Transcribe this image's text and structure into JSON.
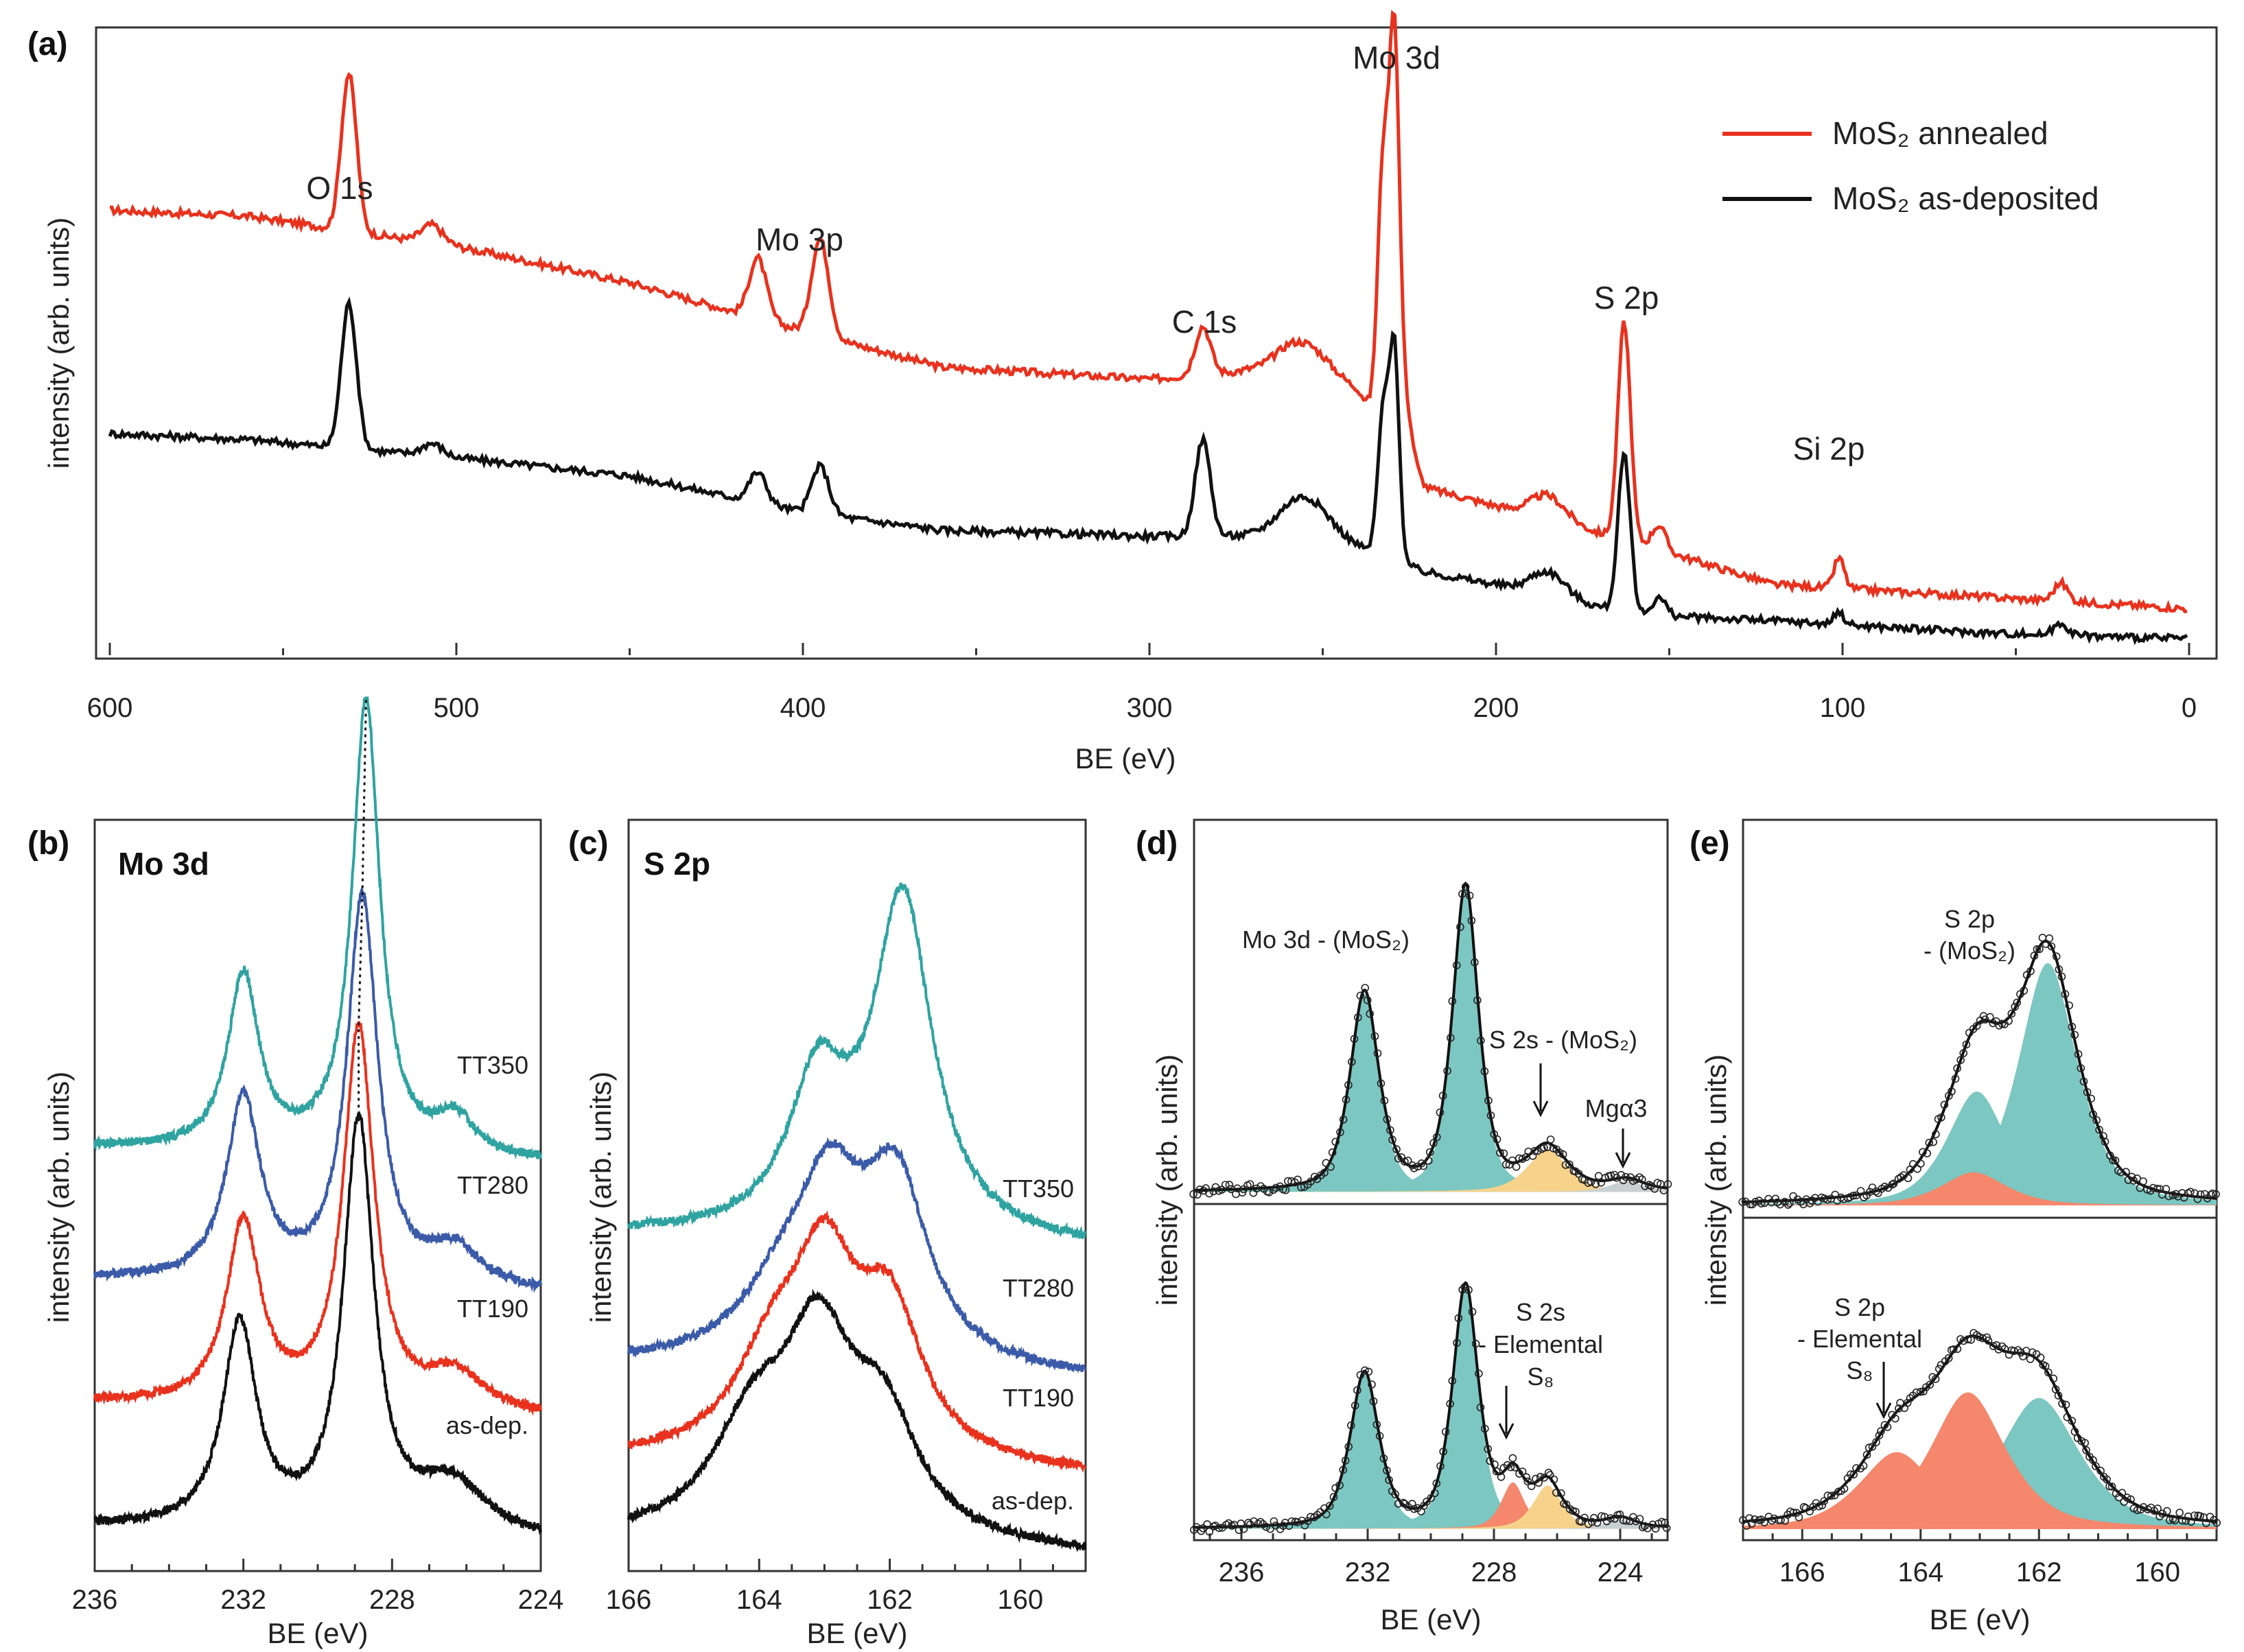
{
  "colors": {
    "annealed": "#e8321e",
    "asdep": "#111111",
    "tt350": "#2fa3a0",
    "tt280": "#3b5ba8",
    "tt190": "#e8321e",
    "teal_fill": "#7cc7c1",
    "orange_fill": "#f7d28a",
    "salmon_fill": "#f4876c"
  },
  "chart_data": [
    {
      "panel": "a",
      "panel_label": "(a)",
      "type": "line",
      "xlabel": "BE (eV)",
      "ylabel": "intensity (arb. units)",
      "xlim": [
        600,
        0
      ],
      "xticks": [
        "600",
        "500",
        "400",
        "300",
        "200",
        "100",
        "0"
      ],
      "legend_position": "top-right",
      "legend": [
        "MoS₂ annealed",
        "MoS₂ as-deposited"
      ],
      "annotations": [
        "O 1s",
        "Mo 3p",
        "C 1s",
        "Mo 3d",
        "S 2p",
        "Si 2p"
      ],
      "series": [
        {
          "name": "MoS₂ annealed",
          "baseline": [
            [
              600,
              0.72
            ],
            [
              560,
              0.71
            ],
            [
              500,
              0.66
            ],
            [
              450,
              0.6
            ],
            [
              400,
              0.52
            ],
            [
              360,
              0.46
            ],
            [
              300,
              0.44
            ],
            [
              260,
              0.46
            ],
            [
              240,
              0.42
            ],
            [
              220,
              0.26
            ],
            [
              200,
              0.23
            ],
            [
              160,
              0.17
            ],
            [
              120,
              0.1
            ],
            [
              60,
              0.08
            ],
            [
              0,
              0.06
            ]
          ],
          "peaks": [
            [
              531,
              0.26,
              2.2
            ],
            [
              507,
              0.03,
              3
            ],
            [
              413,
              0.1,
              2.5
            ],
            [
              395,
              0.16,
              2.5
            ],
            [
              284.6,
              0.08,
              2.2
            ],
            [
              255,
              0.05,
              7
            ],
            [
              232.5,
              0.44,
              1.6
            ],
            [
              229.3,
              0.62,
              1.4
            ],
            [
              226.5,
              0.1,
              2
            ],
            [
              185,
              0.04,
              5
            ],
            [
              163,
              0.36,
              1.8
            ],
            [
              153,
              0.04,
              2
            ],
            [
              101,
              0.05,
              1.5
            ],
            [
              37,
              0.03,
              2
            ]
          ]
        },
        {
          "name": "MoS₂ as-deposited",
          "baseline": [
            [
              600,
              0.35
            ],
            [
              560,
              0.34
            ],
            [
              500,
              0.31
            ],
            [
              450,
              0.28
            ],
            [
              400,
              0.22
            ],
            [
              360,
              0.19
            ],
            [
              300,
              0.18
            ],
            [
              260,
              0.18
            ],
            [
              240,
              0.16
            ],
            [
              220,
              0.12
            ],
            [
              200,
              0.1
            ],
            [
              160,
              0.05
            ],
            [
              120,
              0.04
            ],
            [
              60,
              0.02
            ],
            [
              0,
              0.01
            ]
          ],
          "peaks": [
            [
              531,
              0.24,
              2.2
            ],
            [
              507,
              0.02,
              3
            ],
            [
              413,
              0.05,
              2.5
            ],
            [
              395,
              0.08,
              2.5
            ],
            [
              284.6,
              0.16,
              2.2
            ],
            [
              255,
              0.07,
              7
            ],
            [
              232.5,
              0.24,
              1.6
            ],
            [
              229.3,
              0.34,
              1.4
            ],
            [
              185,
              0.04,
              5
            ],
            [
              163,
              0.26,
              1.8
            ],
            [
              153,
              0.03,
              2
            ],
            [
              101,
              0.02,
              1.5
            ],
            [
              37,
              0.02,
              2
            ]
          ]
        }
      ]
    },
    {
      "panel": "b",
      "panel_label": "(b)",
      "title": "Mo 3d",
      "type": "line",
      "xlabel": "BE (eV)",
      "ylabel": "intensity (arb. units)",
      "xlim": [
        236,
        224
      ],
      "xticks": [
        "236",
        "232",
        "228",
        "224"
      ],
      "series": [
        {
          "name": "TT350",
          "offset": 0.55,
          "peaks": [
            [
              232.0,
              0.24,
              0.5
            ],
            [
              228.7,
              0.62,
              0.45
            ],
            [
              226.3,
              0.05,
              0.6
            ]
          ]
        },
        {
          "name": "TT280",
          "offset": 0.37,
          "peaks": [
            [
              232.0,
              0.25,
              0.55
            ],
            [
              228.8,
              0.53,
              0.5
            ],
            [
              226.3,
              0.05,
              0.8
            ]
          ]
        },
        {
          "name": "TT190",
          "offset": 0.2,
          "peaks": [
            [
              232.0,
              0.25,
              0.55
            ],
            [
              228.9,
              0.52,
              0.5
            ],
            [
              226.3,
              0.05,
              0.9
            ]
          ]
        },
        {
          "name": "as-dep.",
          "offset": 0.03,
          "peaks": [
            [
              232.1,
              0.28,
              0.55
            ],
            [
              228.9,
              0.56,
              0.5
            ],
            [
              226.4,
              0.07,
              1.1
            ]
          ]
        }
      ],
      "line_labels": [
        "TT350",
        "TT280",
        "TT190",
        "as-dep."
      ]
    },
    {
      "panel": "c",
      "panel_label": "(c)",
      "title": "S 2p",
      "type": "line",
      "xlabel": "BE (eV)",
      "ylabel": "intensity (arb. units)",
      "xlim": [
        166,
        159
      ],
      "xticks": [
        "166",
        "164",
        "162",
        "160"
      ],
      "series": [
        {
          "name": "TT350",
          "offset": 0.43,
          "peaks": [
            [
              163.1,
              0.2,
              0.55
            ],
            [
              161.8,
              0.46,
              0.55
            ]
          ]
        },
        {
          "name": "TT280",
          "offset": 0.25,
          "peaks": [
            [
              163.6,
              0.09,
              0.8
            ],
            [
              162.9,
              0.2,
              0.6
            ],
            [
              161.9,
              0.24,
              0.6
            ]
          ]
        },
        {
          "name": "TT190",
          "offset": 0.12,
          "peaks": [
            [
              163.8,
              0.12,
              0.7
            ],
            [
              163.0,
              0.24,
              0.6
            ],
            [
              162.0,
              0.19,
              0.6
            ]
          ]
        },
        {
          "name": "as-dep.",
          "offset": 0.01,
          "peaks": [
            [
              164.1,
              0.14,
              0.75
            ],
            [
              163.1,
              0.25,
              0.65
            ],
            [
              162.1,
              0.15,
              0.65
            ]
          ]
        }
      ],
      "line_labels": [
        "TT350",
        "TT280",
        "TT190",
        "as-dep."
      ]
    },
    {
      "panel": "d",
      "panel_label": "(d)",
      "type": "area",
      "xlabel": "BE (eV)",
      "ylabel": "intensity (arb. units)",
      "xlim": [
        237.5,
        222.5
      ],
      "xticks": [
        "236",
        "232",
        "228",
        "224"
      ],
      "annotations": [
        "Mo 3d - (MoS₂)",
        "S 2s - (MoS₂)",
        "Mgα3",
        "S 2s",
        "- Elemental",
        "S₈"
      ],
      "top": {
        "components": [
          {
            "kind": "teal",
            "center": 232.1,
            "height": 0.56,
            "width": 0.5
          },
          {
            "kind": "teal",
            "center": 228.9,
            "height": 0.86,
            "width": 0.45
          },
          {
            "kind": "orange",
            "center": 226.3,
            "height": 0.12,
            "width": 0.7
          },
          {
            "kind": "gray",
            "center": 223.8,
            "height": 0.03,
            "width": 0.6
          }
        ]
      },
      "bottom": {
        "components": [
          {
            "kind": "teal",
            "center": 232.1,
            "height": 0.5,
            "width": 0.5
          },
          {
            "kind": "teal",
            "center": 228.9,
            "height": 0.78,
            "width": 0.45
          },
          {
            "kind": "salmon",
            "center": 227.4,
            "height": 0.15,
            "width": 0.4
          },
          {
            "kind": "orange",
            "center": 226.3,
            "height": 0.14,
            "width": 0.5
          },
          {
            "kind": "gray",
            "center": 224.0,
            "height": 0.03,
            "width": 0.5
          }
        ]
      }
    },
    {
      "panel": "e",
      "panel_label": "(e)",
      "type": "area",
      "xlabel": "BE (eV)",
      "ylabel": "intensity (arb. units)",
      "xlim": [
        167.0,
        159.0
      ],
      "xticks": [
        "166",
        "164",
        "162",
        "160"
      ],
      "annotations": [
        "S 2p",
        "- (MoS₂)",
        "S 2p",
        "- Elemental",
        "S₈"
      ],
      "top": {
        "components": [
          {
            "kind": "teal",
            "center": 161.85,
            "height": 0.66,
            "width": 0.55
          },
          {
            "kind": "teal",
            "center": 163.05,
            "height": 0.31,
            "width": 0.55
          },
          {
            "kind": "salmon",
            "center": 163.1,
            "height": 0.09,
            "width": 0.6
          }
        ]
      },
      "bottom": {
        "components": [
          {
            "kind": "teal",
            "center": 162.0,
            "height": 0.46,
            "width": 0.75
          },
          {
            "kind": "salmon",
            "center": 163.2,
            "height": 0.48,
            "width": 0.7
          },
          {
            "kind": "salmon",
            "center": 164.4,
            "height": 0.27,
            "width": 0.7
          }
        ]
      }
    }
  ]
}
